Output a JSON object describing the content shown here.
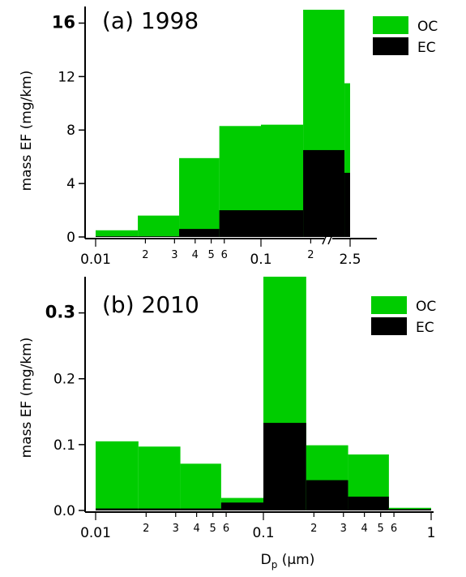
{
  "chart_data": [
    {
      "type": "bar",
      "title": "(a) 1998",
      "ylabel": "mass EF (mg/km)",
      "xlabel": "",
      "ylim": [
        0,
        17
      ],
      "yticks": [
        {
          "value": 0,
          "label": "0",
          "bold": false
        },
        {
          "value": 4,
          "label": "4",
          "bold": false
        },
        {
          "value": 8,
          "label": "8",
          "bold": false
        },
        {
          "value": 12,
          "label": "12",
          "bold": false
        },
        {
          "value": 16,
          "label": "16",
          "bold": true
        }
      ],
      "x_scale": "log",
      "axis_break": true,
      "xticks": [
        {
          "value": 0.01,
          "label": "0.01",
          "major": true
        },
        {
          "value": 0.02,
          "label": "2",
          "major": false
        },
        {
          "value": 0.03,
          "label": "3",
          "major": false
        },
        {
          "value": 0.04,
          "label": "4",
          "major": false
        },
        {
          "value": 0.05,
          "label": "5",
          "major": false
        },
        {
          "value": 0.06,
          "label": "6",
          "major": false
        },
        {
          "value": 0.1,
          "label": "0.1",
          "major": true
        },
        {
          "value": 0.2,
          "label": "2",
          "major": false
        },
        {
          "value": 2.5,
          "label": "2.5",
          "major": true
        }
      ],
      "bins": [
        {
          "from": 0.01,
          "to": 0.018,
          "total": 0.5,
          "ec": 0.05
        },
        {
          "from": 0.018,
          "to": 0.032,
          "total": 1.6,
          "ec": 0.05
        },
        {
          "from": 0.032,
          "to": 0.056,
          "total": 5.9,
          "ec": 0.6
        },
        {
          "from": 0.056,
          "to": 0.1,
          "total": 8.3,
          "ec": 2.0
        },
        {
          "from": 0.1,
          "to": 0.18,
          "total": 8.4,
          "ec": 2.0
        },
        {
          "from": 0.18,
          "to": 0.32,
          "total": 17.0,
          "ec": 6.5
        },
        {
          "from": 0.32,
          "to": 2.5,
          "total": 11.5,
          "ec": 4.8
        }
      ],
      "series": [
        {
          "name": "OC",
          "color": "#00cc00"
        },
        {
          "name": "EC",
          "color": "#000000"
        }
      ],
      "legend": "top-right"
    },
    {
      "type": "bar",
      "title": "(b) 2010",
      "ylabel": "mass EF (mg/km)",
      "xlabel": "Dp (µm)",
      "ylim": [
        0,
        0.35
      ],
      "yticks": [
        {
          "value": 0.0,
          "label": "0.0",
          "bold": false
        },
        {
          "value": 0.1,
          "label": "0.1",
          "bold": false
        },
        {
          "value": 0.2,
          "label": "0.2",
          "bold": false
        },
        {
          "value": 0.3,
          "label": "0.3",
          "bold": true
        }
      ],
      "x_scale": "log",
      "axis_break": false,
      "xticks": [
        {
          "value": 0.01,
          "label": "0.01",
          "major": true
        },
        {
          "value": 0.02,
          "label": "2",
          "major": false
        },
        {
          "value": 0.03,
          "label": "3",
          "major": false
        },
        {
          "value": 0.04,
          "label": "4",
          "major": false
        },
        {
          "value": 0.05,
          "label": "5",
          "major": false
        },
        {
          "value": 0.06,
          "label": "6",
          "major": false
        },
        {
          "value": 0.1,
          "label": "0.1",
          "major": true
        },
        {
          "value": 0.2,
          "label": "2",
          "major": false
        },
        {
          "value": 0.3,
          "label": "3",
          "major": false
        },
        {
          "value": 0.4,
          "label": "4",
          "major": false
        },
        {
          "value": 0.5,
          "label": "5",
          "major": false
        },
        {
          "value": 0.6,
          "label": "6",
          "major": false
        },
        {
          "value": 1,
          "label": "1",
          "major": true
        }
      ],
      "bins": [
        {
          "from": 0.01,
          "to": 0.018,
          "total": 0.105,
          "ec": 0.003
        },
        {
          "from": 0.018,
          "to": 0.032,
          "total": 0.097,
          "ec": 0.003
        },
        {
          "from": 0.032,
          "to": 0.056,
          "total": 0.071,
          "ec": 0.003
        },
        {
          "from": 0.056,
          "to": 0.1,
          "total": 0.019,
          "ec": 0.012
        },
        {
          "from": 0.1,
          "to": 0.18,
          "total": 0.355,
          "ec": 0.133
        },
        {
          "from": 0.18,
          "to": 0.32,
          "total": 0.099,
          "ec": 0.046
        },
        {
          "from": 0.32,
          "to": 0.56,
          "total": 0.085,
          "ec": 0.021
        },
        {
          "from": 0.56,
          "to": 1.0,
          "total": 0.004,
          "ec": 0.002
        }
      ],
      "series": [
        {
          "name": "OC",
          "color": "#00cc00"
        },
        {
          "name": "EC",
          "color": "#000000"
        }
      ],
      "legend": "top-right"
    }
  ]
}
